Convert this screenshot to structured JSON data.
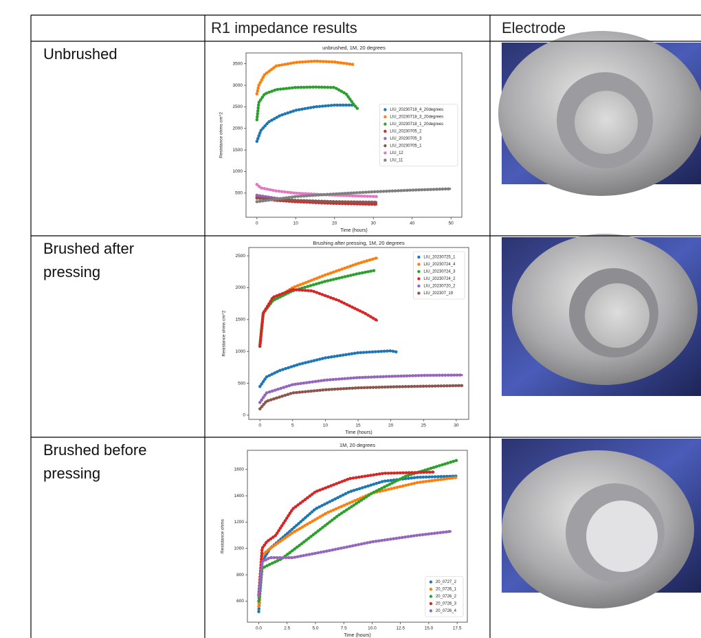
{
  "table": {
    "header": [
      "R1 impedance results",
      "Electrode"
    ],
    "rows": [
      {
        "label": "Unbrushed",
        "chart": {
          "type": "line",
          "title": "unbrushed, 1M, 20 degrees",
          "xlabel": "Time (hours)",
          "ylabel": "Resistance ohms cm^2",
          "xlim": [
            -2.8,
            52.8
          ],
          "ylim": [
            -60,
            3750
          ],
          "xticks": [
            0,
            10,
            20,
            30,
            40,
            50
          ],
          "yticks": [
            500,
            1000,
            1500,
            2000,
            2500,
            3000,
            3500
          ],
          "legend": "center right",
          "series": [
            {
              "name": "LIU_20230718_4_20degrees",
              "color": "#1f77b4",
              "x": [
                0,
                1,
                3,
                6,
                10,
                15,
                20,
                25
              ],
              "values": [
                1700,
                1950,
                2150,
                2300,
                2420,
                2500,
                2540,
                2540
              ]
            },
            {
              "name": "LIU_20230718_3_20degrees",
              "color": "#ff7f0e",
              "x": [
                0,
                0.5,
                2,
                5,
                10,
                15,
                20,
                25
              ],
              "values": [
                2800,
                3000,
                3250,
                3450,
                3530,
                3560,
                3540,
                3480
              ]
            },
            {
              "name": "LIU_20230718_1_20degrees",
              "color": "#2ca02c",
              "x": [
                0,
                0.5,
                2,
                5,
                10,
                15,
                20,
                23,
                25,
                26
              ],
              "values": [
                2200,
                2600,
                2800,
                2900,
                2950,
                2960,
                2950,
                2800,
                2550,
                2450
              ]
            },
            {
              "name": "LIU_20230705_2",
              "color": "#d62728",
              "x": [
                0,
                5,
                10,
                20,
                31
              ],
              "values": [
                400,
                330,
                300,
                260,
                240
              ]
            },
            {
              "name": "LIU_20230705_3",
              "color": "#9467bd",
              "x": [
                0,
                5,
                10,
                20,
                31
              ],
              "values": [
                450,
                380,
                330,
                300,
                290
              ]
            },
            {
              "name": "LIU_20230705_1",
              "color": "#8c564b",
              "x": [
                0,
                10,
                20,
                31
              ],
              "values": [
                380,
                330,
                300,
                280
              ]
            },
            {
              "name": "LIU_12",
              "color": "#e377c2",
              "x": [
                0,
                1,
                5,
                10,
                20,
                31
              ],
              "values": [
                700,
                620,
                550,
                500,
                450,
                420
              ]
            },
            {
              "name": "LIU_11",
              "color": "#7f7f7f",
              "x": [
                0,
                10,
                20,
                30,
                40,
                50
              ],
              "values": [
                300,
                420,
                480,
                530,
                570,
                600
              ]
            }
          ]
        }
      },
      {
        "label": "Brushed after pressing",
        "chart": {
          "type": "line",
          "title": "Brushing after pressing, 1M, 20 degrees",
          "xlabel": "Time (hours)",
          "ylabel": "Resistance ohms cm^2",
          "xlim": [
            -1.7,
            31.9
          ],
          "ylim": [
            -65,
            2630
          ],
          "xticks": [
            0,
            5,
            10,
            15,
            20,
            25,
            30
          ],
          "yticks": [
            0,
            500,
            1000,
            1500,
            2000,
            2500
          ],
          "legend": "upper right",
          "series": [
            {
              "name": "LIU_20230725_1",
              "color": "#1f77b4",
              "x": [
                0,
                1,
                3,
                6,
                10,
                15,
                20,
                21
              ],
              "values": [
                450,
                600,
                700,
                800,
                900,
                980,
                1010,
                990
              ]
            },
            {
              "name": "LIU_20230724_4",
              "color": "#ff7f0e",
              "x": [
                0,
                0.5,
                2,
                5,
                10,
                15,
                18
              ],
              "values": [
                1100,
                1600,
                1800,
                2000,
                2200,
                2380,
                2470
              ]
            },
            {
              "name": "LIU_20230724_3",
              "color": "#2ca02c",
              "x": [
                0,
                0.5,
                2,
                5,
                10,
                15,
                17.5
              ],
              "values": [
                1100,
                1600,
                1800,
                1950,
                2100,
                2220,
                2270
              ]
            },
            {
              "name": "LIU_20230724_2",
              "color": "#d62728",
              "x": [
                0,
                0.5,
                2,
                5,
                8,
                12,
                16,
                18
              ],
              "values": [
                1080,
                1600,
                1850,
                1970,
                1950,
                1800,
                1600,
                1480
              ]
            },
            {
              "name": "LIU_20230720_2",
              "color": "#9467bd",
              "x": [
                0,
                1,
                5,
                10,
                15,
                20,
                25,
                31
              ],
              "values": [
                200,
                350,
                480,
                550,
                590,
                610,
                625,
                630
              ]
            },
            {
              "name": "LIU_202307_19",
              "color": "#8c564b",
              "x": [
                0,
                1,
                5,
                10,
                15,
                20,
                25,
                31
              ],
              "values": [
                100,
                220,
                350,
                400,
                430,
                445,
                455,
                465
              ]
            }
          ]
        }
      },
      {
        "label": "Brushed before pressing",
        "chart": {
          "type": "line",
          "title": "1M, 20 degrees",
          "xlabel": "Time (hours)",
          "ylabel": "Resistance ohms",
          "xlim": [
            -1.0,
            18.4
          ],
          "ylim": [
            440,
            1745
          ],
          "xticks": [
            {
              "value": 0,
              "label": "0.0"
            },
            2.5,
            {
              "value": 5,
              "label": "5.0"
            },
            7.5,
            {
              "value": 10,
              "label": "10.0"
            },
            12.5,
            {
              "value": 15,
              "label": "15.0"
            },
            17.5
          ],
          "yticks": [
            600,
            800,
            1000,
            1200,
            1400,
            1600
          ],
          "legend": "lower right",
          "series": [
            {
              "name": "20_0727_2",
              "color": "#1f77b4",
              "x": [
                0,
                0.3,
                1,
                3,
                5,
                8,
                11,
                14,
                17.5
              ],
              "values": [
                520,
                900,
                1000,
                1150,
                1300,
                1430,
                1510,
                1540,
                1550
              ]
            },
            {
              "name": "20_0726_1",
              "color": "#ff7f0e",
              "x": [
                0,
                0.3,
                1,
                3,
                6,
                10,
                14,
                17.5
              ],
              "values": [
                560,
                950,
                1000,
                1120,
                1270,
                1420,
                1500,
                1540
              ]
            },
            {
              "name": "20_0726_2",
              "color": "#2ca02c",
              "x": [
                0,
                0.3,
                1,
                2,
                4,
                7,
                10,
                13,
                16,
                17.5
              ],
              "values": [
                600,
                850,
                880,
                920,
                1050,
                1250,
                1420,
                1550,
                1630,
                1670
              ]
            },
            {
              "name": "20_0726_3",
              "color": "#d62728",
              "x": [
                0,
                0.3,
                0.7,
                1.5,
                3,
                5,
                8,
                11,
                15.5
              ],
              "values": [
                650,
                1000,
                1050,
                1100,
                1300,
                1430,
                1530,
                1570,
                1580
              ]
            },
            {
              "name": "20_0726_4",
              "color": "#9467bd",
              "x": [
                0,
                0.3,
                1,
                3,
                6,
                10,
                14,
                17
              ],
              "values": [
                640,
                900,
                930,
                930,
                980,
                1050,
                1100,
                1130
              ]
            }
          ]
        }
      }
    ]
  }
}
